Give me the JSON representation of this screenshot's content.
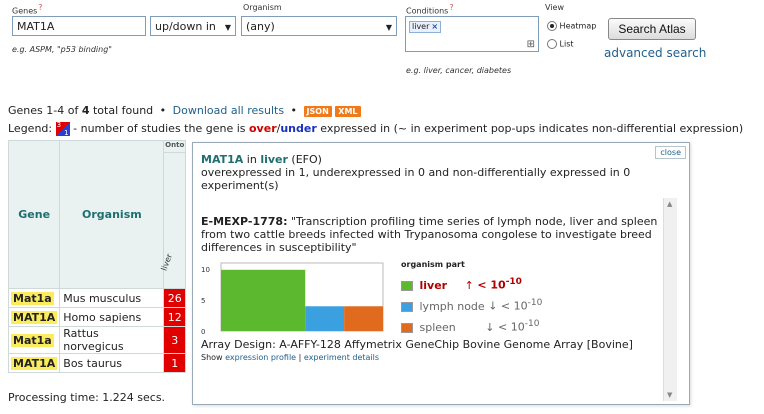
{
  "search": {
    "genes_label": "Genes",
    "help_mark": "?",
    "genes_value": "MAT1A",
    "genes_hint": "e.g. ASPM, \"p53 binding\"",
    "direction_value": "up/down in",
    "organism_label": "Organism",
    "organism_value": "(any)",
    "conditions_label": "Conditions",
    "condition_tag": "liver",
    "condition_tag_remove": "×",
    "conditions_expand": "⊞",
    "conditions_hint": "e.g. liver, cancer, diabetes",
    "view_label": "View",
    "view_options": [
      "Heatmap",
      "List"
    ],
    "search_button": "Search Atlas",
    "advanced_link": "advanced search"
  },
  "results": {
    "summary_prefix": "Genes 1-4 of",
    "summary_total": "4",
    "summary_suffix": "total found",
    "bullet": "•",
    "download_link": "Download all results",
    "json_badge": "JSON",
    "xml_badge": "XML",
    "legend_label": "Legend:",
    "legend_icon_top": "3",
    "legend_icon_bottom": "1",
    "legend_text_prefix": "- number of studies the gene is",
    "legend_over": "over",
    "legend_slash": "/",
    "legend_under": "under",
    "legend_text_suffix": "expressed in (~ in experiment pop-ups indicates non-differential expression)",
    "col_ontology": "Onto",
    "col_gene": "Gene",
    "col_organism": "Organism",
    "col_condition": "liver",
    "rows": [
      {
        "gene": "Mat1a",
        "organism": "Mus musculus",
        "count": "26"
      },
      {
        "gene": "MAT1A",
        "organism": "Homo sapiens",
        "count": "12"
      },
      {
        "gene": "Mat1a",
        "organism": "Rattus norvegicus",
        "count": "3"
      },
      {
        "gene": "MAT1A",
        "organism": "Bos taurus",
        "count": "1"
      }
    ],
    "processing_time": "Processing time: 1.224 secs."
  },
  "popup": {
    "close_label": "close",
    "gene": "MAT1A",
    "in_word": "in",
    "condition": "liver",
    "source": "(EFO)",
    "line2": "overexpressed in 1, underexpressed in 0 and non-differentially expressed in 0",
    "line3": "experiment(s)",
    "experiment_id": "E-MEXP-1778:",
    "experiment_title": "\"Transcription profiling time series of lymph node, liver and spleen from two cattle breeds infected with Trypanosoma congolese to investigate breed differences in susceptibility\"",
    "legend_title": "organism part",
    "legend_items": [
      {
        "name": "liver",
        "arrow": "↑",
        "pvalue": "< 10",
        "exp": "-10",
        "color": "#5cb82e"
      },
      {
        "name": "lymph node",
        "arrow": "↓",
        "pvalue": "< 10",
        "exp": "-10",
        "color": "#3ba0e0"
      },
      {
        "name": "spleen",
        "arrow": "↓",
        "pvalue": "< 10",
        "exp": "-10",
        "color": "#e06a1e"
      }
    ],
    "array_design": "Array Design: A-AFFY-128 Affymetrix GeneChip Bovine Genome Array [Bovine]",
    "show_label": "Show",
    "expression_profile_link": "expression profile",
    "separator": "|",
    "experiment_details_link": "experiment details"
  },
  "chart_data": {
    "type": "area",
    "y_ticks": [
      "10",
      "5",
      "0"
    ],
    "ylim": [
      0,
      11
    ],
    "segments": [
      {
        "name": "liver",
        "x_range": [
          0,
          0.52
        ],
        "value": 9.9,
        "color": "#5cb82e"
      },
      {
        "name": "lymph node",
        "x_range": [
          0.52,
          0.76
        ],
        "value": 4.0,
        "color": "#3ba0e0"
      },
      {
        "name": "spleen",
        "x_range": [
          0.76,
          1.0
        ],
        "value": 4.0,
        "color": "#e06a1e"
      }
    ]
  }
}
